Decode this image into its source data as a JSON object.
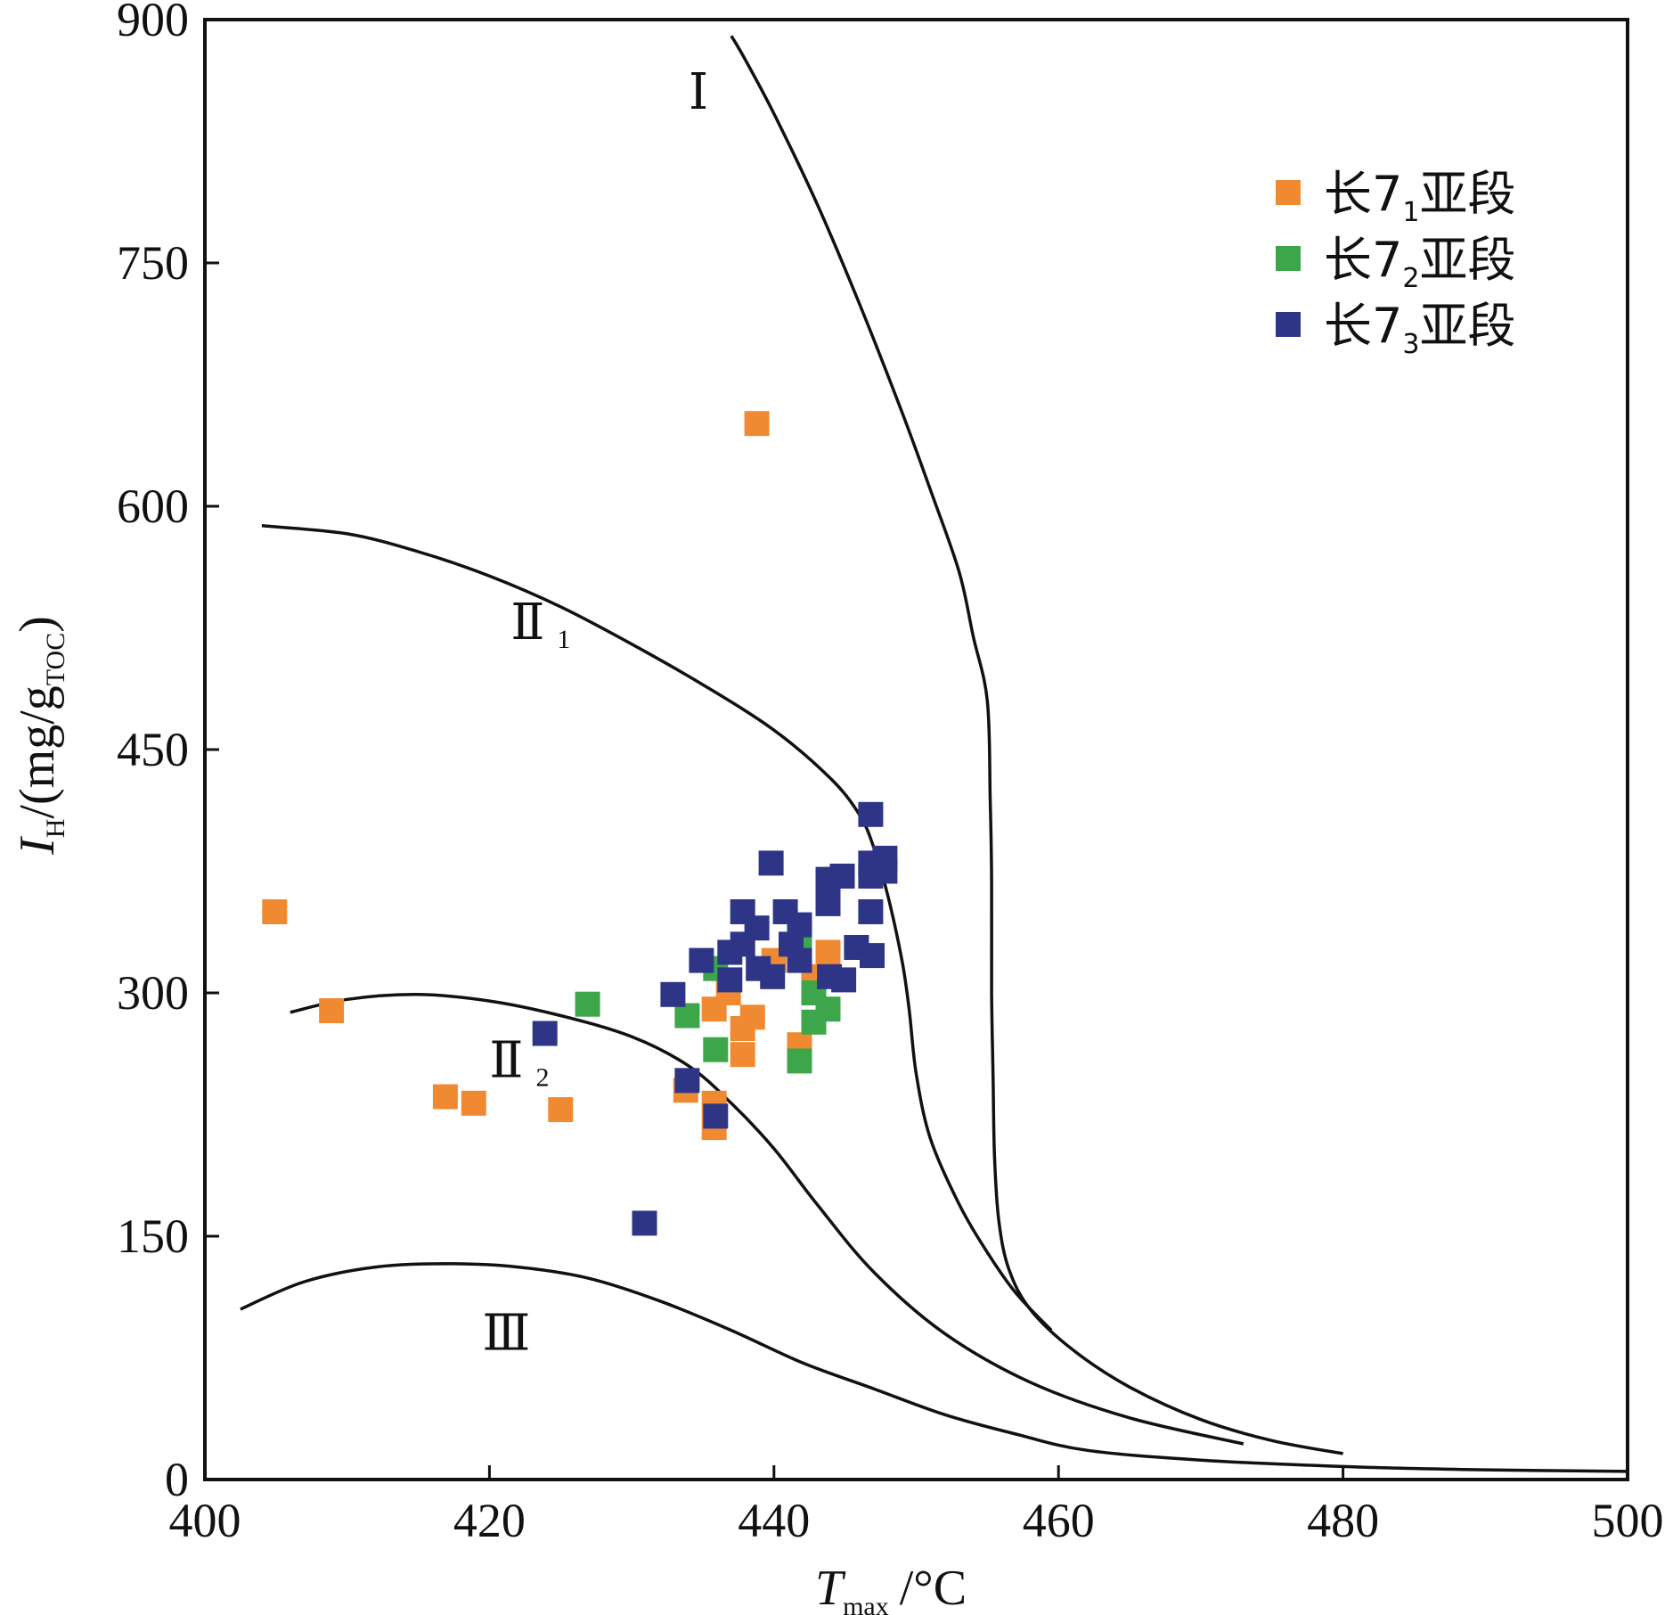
{
  "chart_data": {
    "type": "scatter",
    "xlabel": {
      "main": "T",
      "sub": "max",
      "unit": "/°C"
    },
    "ylabel": {
      "main": "I",
      "sub": "H",
      "unit_prefix": "/(mg/g",
      "unit_sub": "TOC",
      "unit_suffix": ")"
    },
    "xlim": [
      400,
      500
    ],
    "ylim": [
      0,
      900
    ],
    "xticks": [
      400,
      420,
      440,
      460,
      480,
      500
    ],
    "yticks": [
      0,
      150,
      300,
      450,
      600,
      750,
      900
    ],
    "grid": false,
    "legend_position": "top-right",
    "region_labels": [
      {
        "main": "Ⅰ",
        "sub": "",
        "x": 434,
        "y": 845
      },
      {
        "main": "Ⅱ",
        "sub": "1",
        "x": 421.5,
        "y": 518
      },
      {
        "main": "Ⅱ",
        "sub": "2",
        "x": 420,
        "y": 248
      },
      {
        "main": "Ⅲ",
        "sub": "",
        "x": 419.5,
        "y": 80
      }
    ],
    "curves": [
      {
        "name": "I",
        "points": [
          [
            437,
            890
          ],
          [
            438,
            875
          ],
          [
            440,
            842
          ],
          [
            443,
            787
          ],
          [
            446,
            725
          ],
          [
            449,
            658
          ],
          [
            451,
            610
          ],
          [
            453,
            560
          ],
          [
            454,
            520
          ],
          [
            455,
            480
          ],
          [
            455.2,
            420
          ],
          [
            455.3,
            370
          ],
          [
            455.3,
            300
          ],
          [
            455.4,
            250
          ],
          [
            455.5,
            200
          ],
          [
            455.8,
            160
          ],
          [
            456.5,
            130
          ],
          [
            458,
            105
          ],
          [
            461,
            80
          ],
          [
            465,
            57
          ],
          [
            470,
            37
          ],
          [
            475,
            24
          ],
          [
            480,
            16
          ]
        ]
      },
      {
        "name": "II1",
        "points": [
          [
            404,
            588
          ],
          [
            410,
            583
          ],
          [
            415,
            572
          ],
          [
            420,
            557
          ],
          [
            425,
            538
          ],
          [
            430,
            515
          ],
          [
            435,
            490
          ],
          [
            440,
            462
          ],
          [
            444,
            432
          ],
          [
            446,
            410
          ],
          [
            447,
            390
          ],
          [
            448,
            360
          ],
          [
            449,
            320
          ],
          [
            449.5,
            290
          ],
          [
            450,
            250
          ],
          [
            451,
            210
          ],
          [
            453,
            170
          ],
          [
            455,
            140
          ],
          [
            457,
            115
          ],
          [
            459.5,
            92
          ]
        ]
      },
      {
        "name": "II2",
        "points": [
          [
            406,
            288
          ],
          [
            410,
            296
          ],
          [
            415,
            299
          ],
          [
            420,
            295
          ],
          [
            425,
            286
          ],
          [
            430,
            273
          ],
          [
            434,
            255
          ],
          [
            437,
            232
          ],
          [
            440,
            204
          ],
          [
            443,
            170
          ],
          [
            447,
            128
          ],
          [
            452,
            90
          ],
          [
            458,
            60
          ],
          [
            465,
            38
          ],
          [
            473,
            22
          ]
        ]
      },
      {
        "name": "III",
        "points": [
          [
            402.5,
            105
          ],
          [
            407,
            122
          ],
          [
            412,
            131
          ],
          [
            417,
            133
          ],
          [
            422,
            131
          ],
          [
            427,
            124
          ],
          [
            432,
            110
          ],
          [
            437,
            92
          ],
          [
            442,
            72
          ],
          [
            447,
            56
          ],
          [
            452,
            40
          ],
          [
            457,
            28
          ],
          [
            462,
            18
          ],
          [
            470,
            12
          ],
          [
            480,
            8
          ],
          [
            490,
            6
          ],
          [
            500,
            5
          ]
        ]
      }
    ],
    "series": [
      {
        "name": "长7",
        "name_sub": "1",
        "name_suffix": "亚段",
        "color": "#F08A32",
        "points": [
          [
            404.9,
            350
          ],
          [
            408.9,
            289
          ],
          [
            416.9,
            236
          ],
          [
            418.9,
            232
          ],
          [
            425,
            228
          ],
          [
            433.8,
            240
          ],
          [
            435.8,
            232
          ],
          [
            435.8,
            290
          ],
          [
            435.8,
            217
          ],
          [
            436.8,
            300
          ],
          [
            437.8,
            278
          ],
          [
            437.8,
            262
          ],
          [
            438.5,
            285
          ],
          [
            438.8,
            651
          ],
          [
            440,
            320
          ],
          [
            441.8,
            268
          ],
          [
            442.8,
            310
          ],
          [
            443.8,
            325
          ]
        ]
      },
      {
        "name": "长7",
        "name_sub": "2",
        "name_suffix": "亚段",
        "color": "#3DA64A",
        "points": [
          [
            426.9,
            293
          ],
          [
            433.9,
            286
          ],
          [
            435.9,
            265
          ],
          [
            435.9,
            315
          ],
          [
            441.8,
            258
          ],
          [
            441.8,
            330
          ],
          [
            442.8,
            282
          ],
          [
            442.8,
            300
          ],
          [
            443.8,
            290
          ]
        ]
      },
      {
        "name": "长7",
        "name_sub": "3",
        "name_suffix": "亚段",
        "color": "#2E3587",
        "points": [
          [
            423.9,
            275
          ],
          [
            430.9,
            158
          ],
          [
            432.9,
            299
          ],
          [
            433.9,
            246
          ],
          [
            434.9,
            320
          ],
          [
            435.9,
            224
          ],
          [
            436.9,
            308
          ],
          [
            436.9,
            325
          ],
          [
            437.8,
            350
          ],
          [
            437.8,
            330
          ],
          [
            438.8,
            340
          ],
          [
            438.9,
            315
          ],
          [
            439.8,
            380
          ],
          [
            439.9,
            310
          ],
          [
            440.8,
            350
          ],
          [
            441.2,
            330
          ],
          [
            441.8,
            342
          ],
          [
            441.8,
            320
          ],
          [
            443.8,
            370
          ],
          [
            443.8,
            355
          ],
          [
            443.9,
            310
          ],
          [
            444.8,
            372
          ],
          [
            444.9,
            308
          ],
          [
            445.8,
            328
          ],
          [
            446.8,
            410
          ],
          [
            446.8,
            380
          ],
          [
            446.8,
            372
          ],
          [
            446.8,
            350
          ],
          [
            446.9,
            323
          ],
          [
            447.8,
            383
          ],
          [
            447.8,
            375
          ]
        ]
      }
    ]
  }
}
